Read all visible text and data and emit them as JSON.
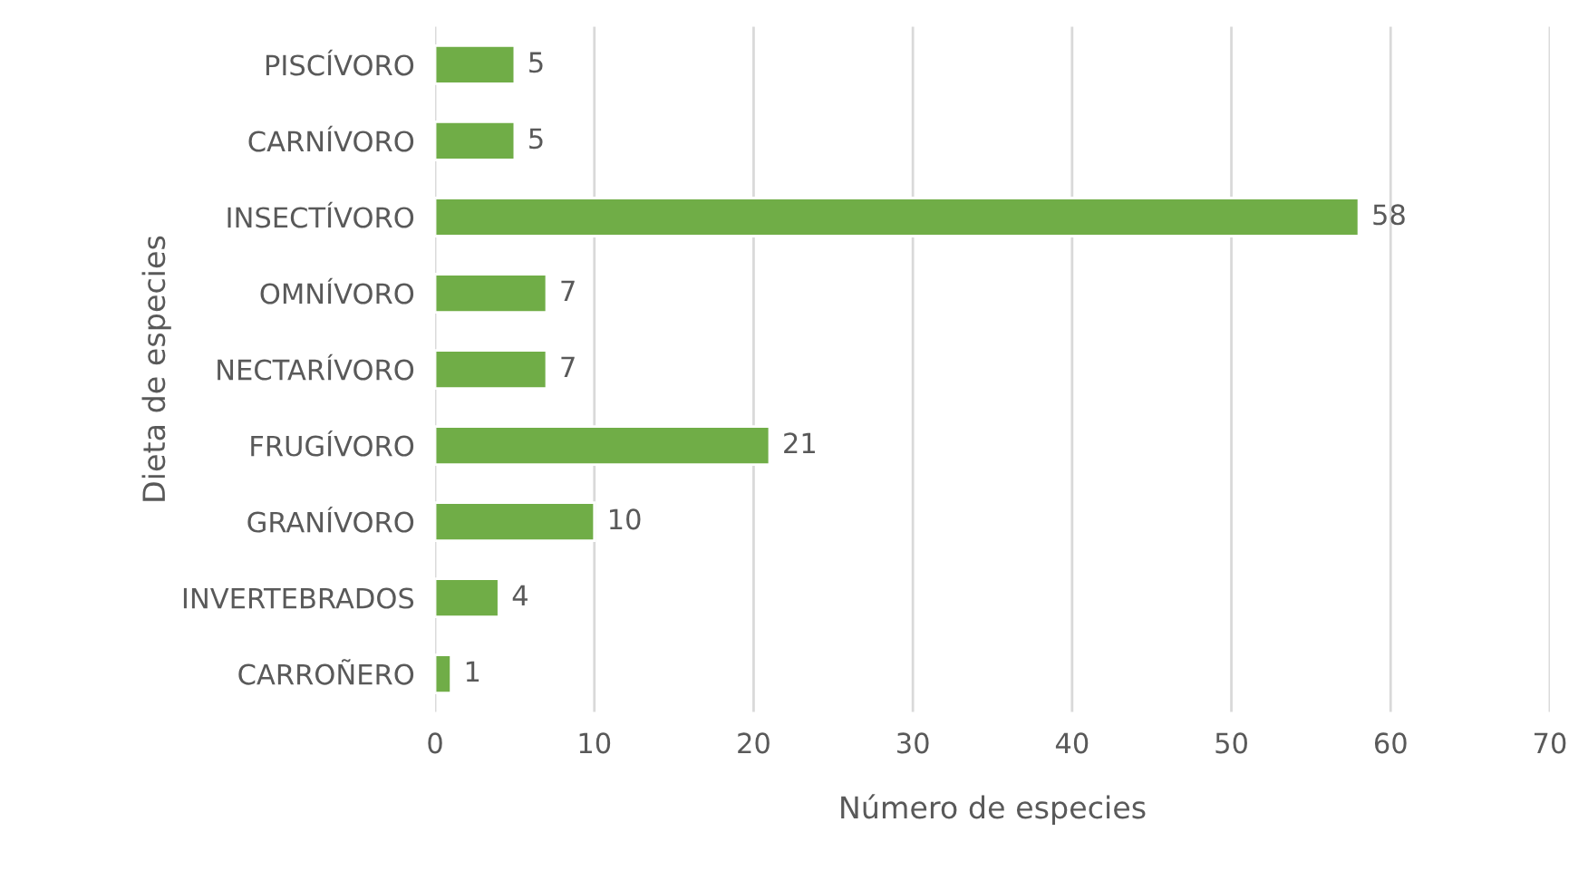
{
  "chart_data": {
    "type": "bar",
    "orientation": "horizontal",
    "xlabel": "Número de especies",
    "ylabel": "Dieta de especies",
    "categories": [
      "PISCÍVORO",
      "CARNÍVORO",
      "INSECTÍVORO",
      "OMNÍVORO",
      "NECTARÍVORO",
      "FRUGÍVORO",
      "GRANÍVORO",
      "INVERTEBRADOS",
      "CARROÑERO"
    ],
    "values": [
      5,
      5,
      58,
      7,
      7,
      21,
      10,
      4,
      1
    ],
    "color": "#70ad47",
    "xlim": [
      0,
      70
    ],
    "xticks": [
      0,
      10,
      20,
      30,
      40,
      50,
      60,
      70
    ],
    "grid": "x",
    "data_labels": true,
    "legend": false
  }
}
